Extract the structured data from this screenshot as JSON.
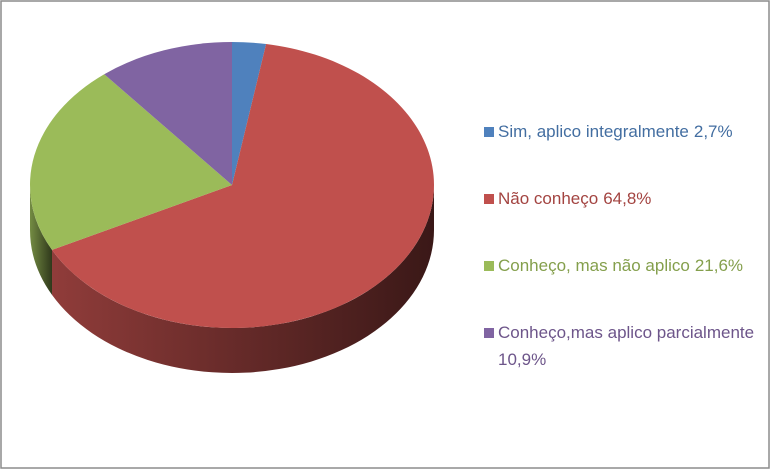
{
  "chart_data": {
    "type": "pie3d",
    "categories": [
      "Sim, aplico integralmente",
      "Não conheço",
      "Conheço, mas não aplico",
      "Conheço,mas aplico parcialmente"
    ],
    "values": [
      2.7,
      64.8,
      21.6,
      10.9
    ],
    "value_labels": [
      "2,7%",
      "64,8%",
      "21,6%",
      "10,9%"
    ],
    "colors": [
      "#4f81bd",
      "#c0504d",
      "#9bbb59",
      "#8064a2"
    ],
    "legend": "right"
  }
}
